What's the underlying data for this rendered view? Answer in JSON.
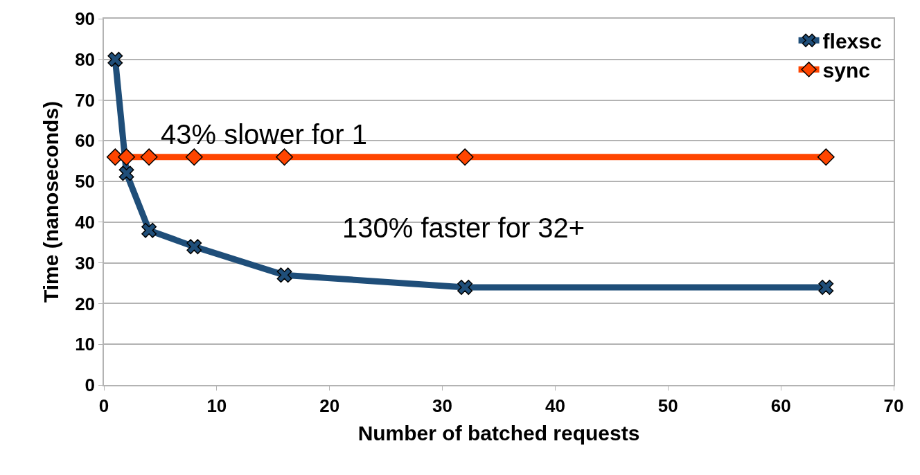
{
  "chart_data": {
    "type": "line",
    "xlabel": "Number of batched requests",
    "ylabel": "Time (nanoseconds)",
    "x": [
      1,
      2,
      4,
      8,
      16,
      32,
      64
    ],
    "series": [
      {
        "name": "flexsc",
        "color": "#1f4e79",
        "marker": "cross",
        "values": [
          80,
          52,
          38,
          34,
          27,
          24,
          24
        ]
      },
      {
        "name": "sync",
        "color": "#ff4500",
        "marker": "diamond",
        "values": [
          56,
          56,
          56,
          56,
          56,
          56,
          56
        ]
      }
    ],
    "xlim": [
      0,
      70
    ],
    "xticks": [
      0,
      10,
      20,
      30,
      40,
      50,
      60,
      70
    ],
    "ylim": [
      0,
      90
    ],
    "yticks": [
      0,
      10,
      20,
      30,
      40,
      50,
      60,
      70,
      80,
      90
    ],
    "grid": "y",
    "legend": "top right",
    "annotations": [
      "43% slower for 1",
      "130% faster for 32+"
    ]
  }
}
